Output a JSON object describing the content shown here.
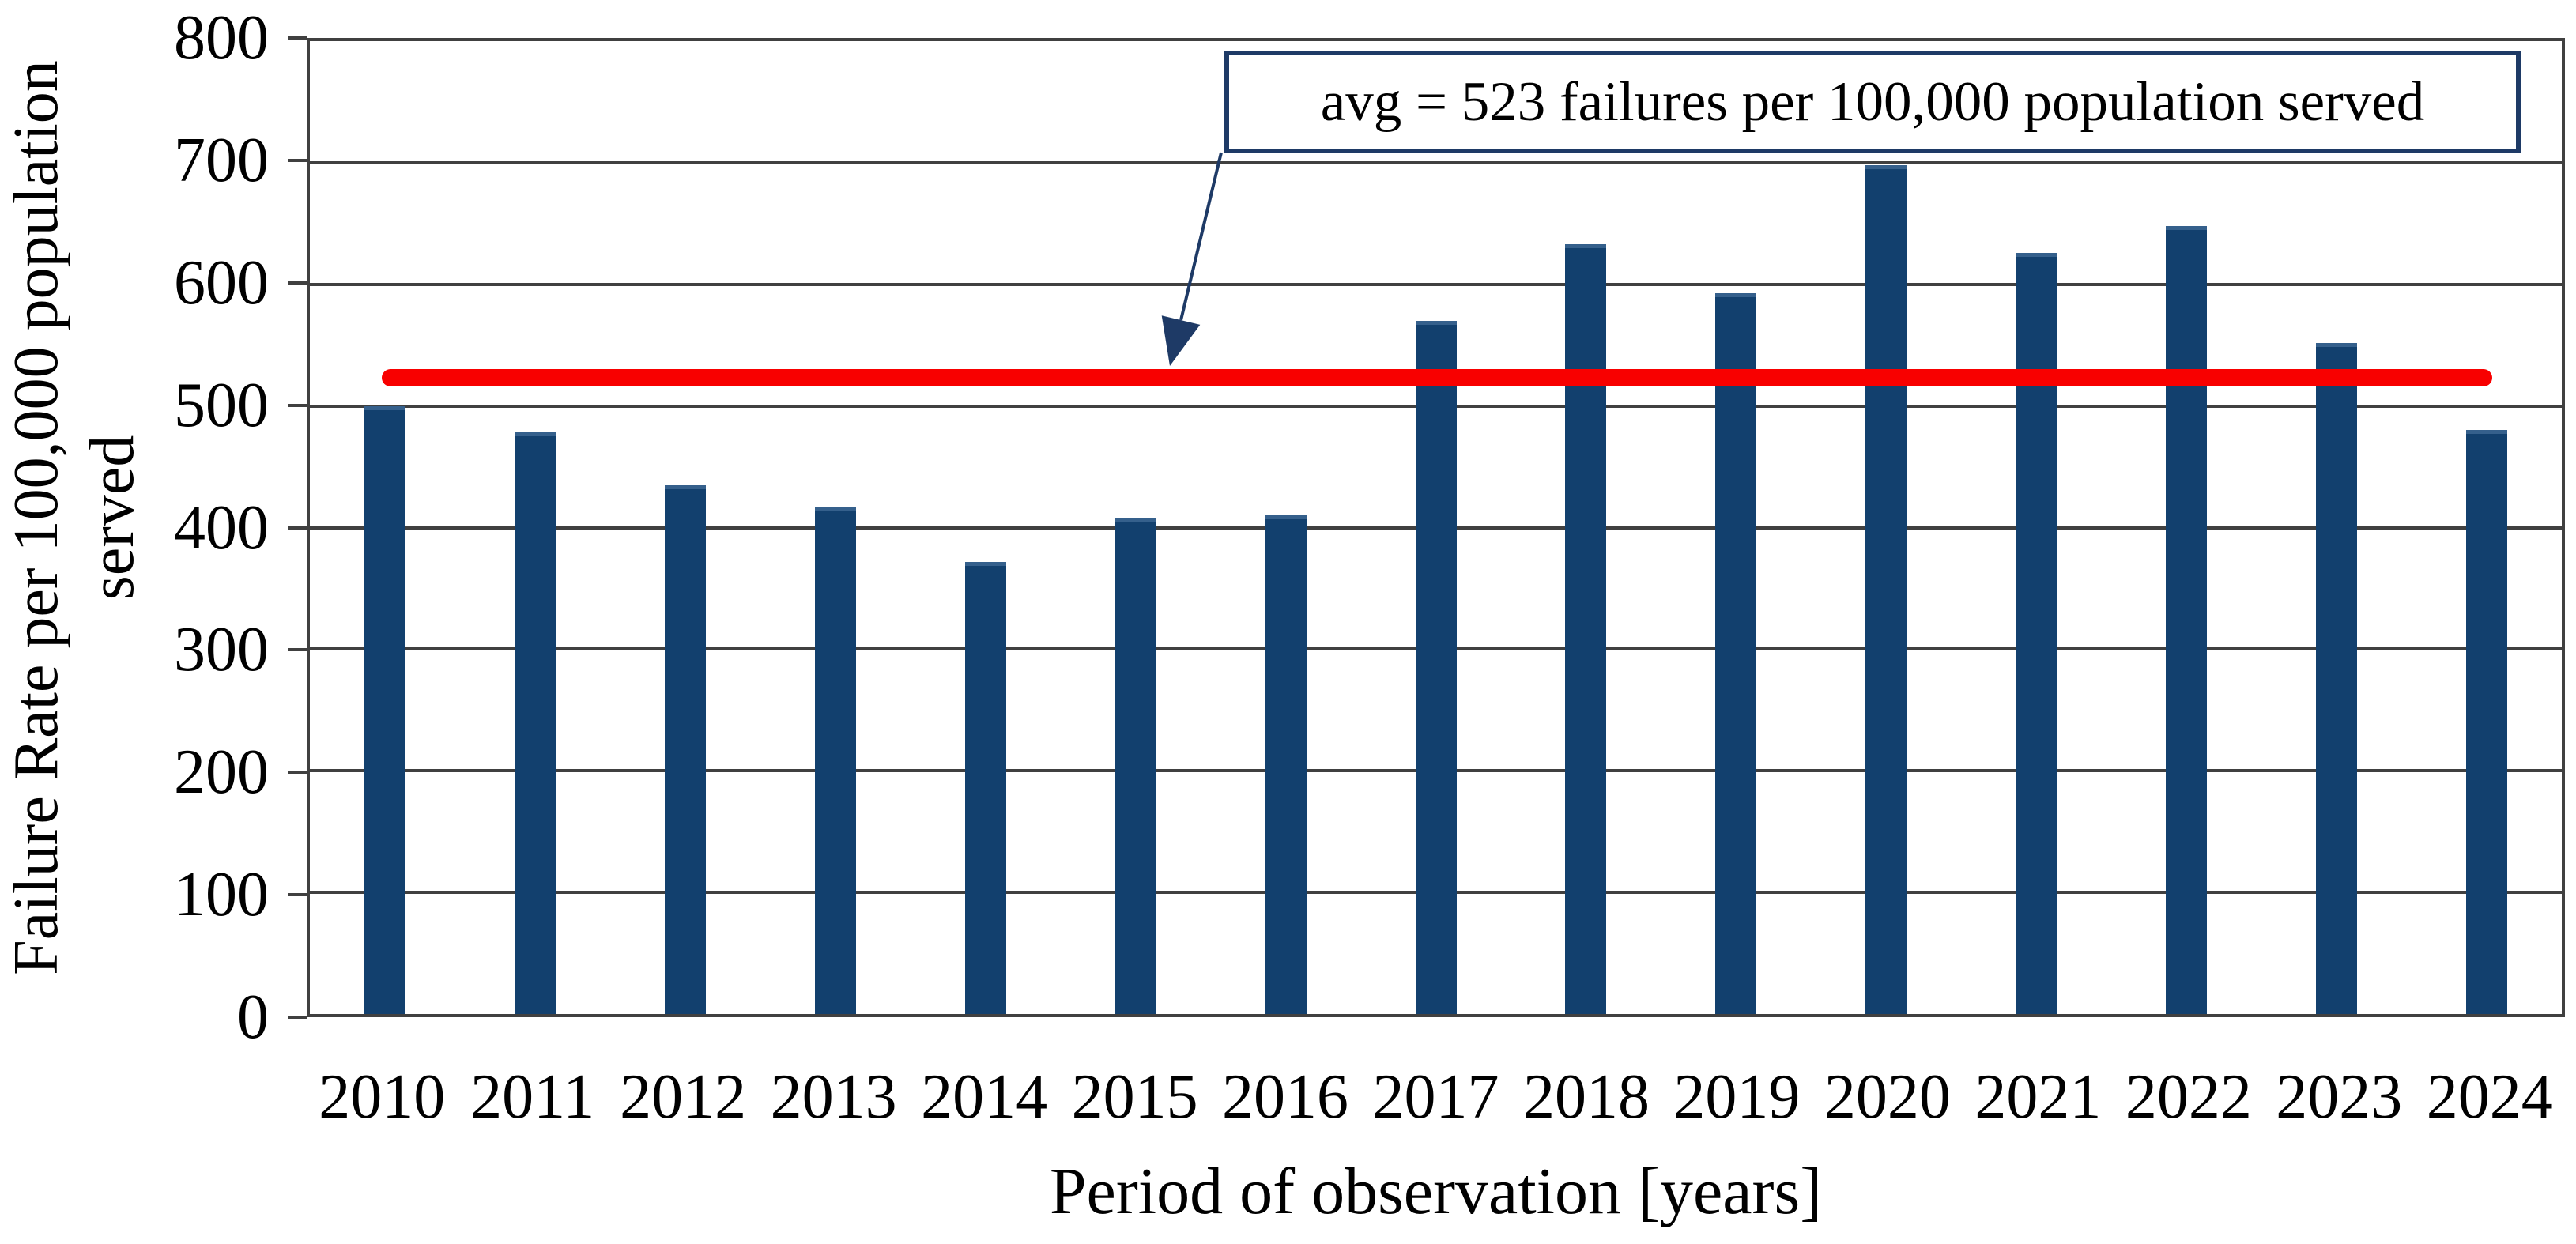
{
  "chart_data": {
    "type": "bar",
    "title": "",
    "categories": [
      "2010",
      "2011",
      "2012",
      "2013",
      "2014",
      "2015",
      "2016",
      "2017",
      "2018",
      "2019",
      "2020",
      "2021",
      "2022",
      "2023",
      "2024"
    ],
    "series": [
      {
        "name": "Failure Rate per 100,000 population served",
        "values": [
          500,
          478,
          435,
          417,
          372,
          408,
          410,
          570,
          633,
          593,
          698,
          626,
          648,
          552,
          480
        ]
      }
    ],
    "xlabel": "Period of observation [years]",
    "ylabel": "Failure Rate per 100,000 population served",
    "ylabel_lines": [
      "Failure Rate per 100,000 population",
      "served"
    ],
    "ylim": [
      0,
      800
    ],
    "ytick_step": 100,
    "grid": "horizontal",
    "legend": "none",
    "bar_color": "#12406E",
    "grid_color": "#404040",
    "avg_line": {
      "value": 523,
      "color": "#F80000",
      "x_start_frac": 0.032,
      "x_end_frac": 0.969,
      "annotation": "avg = 523 failures per 100,000 population served",
      "annotation_border_color": "#1E3A66"
    }
  }
}
